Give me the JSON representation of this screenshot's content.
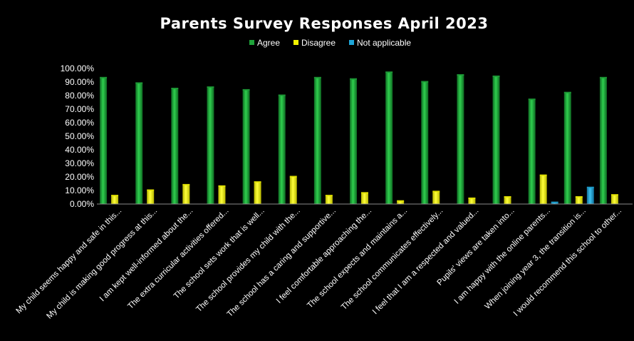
{
  "chart_data": {
    "type": "bar",
    "title": "Parents Survey Responses April 2023",
    "xlabel": "",
    "ylabel": "",
    "ylim": [
      0,
      100
    ],
    "y_ticks": [
      "0.00%",
      "10.00%",
      "20.00%",
      "30.00%",
      "40.00%",
      "50.00%",
      "60.00%",
      "70.00%",
      "80.00%",
      "90.00%",
      "100.00%"
    ],
    "grid": false,
    "legend_position": "top-center",
    "categories": [
      "My child seems happy and safe in this...",
      "My child is making good progress at this...",
      "I am kept well-informed about the...",
      "The extra curricular activities offered...",
      "The school sets work that is well...",
      "The school provides my child with the...",
      "The school has a caring and supportive...",
      "I feel comfortable approaching the...",
      "The school expects and maintains a...",
      "The school communicates effectively...",
      "I feel that I am a respected and valued...",
      "Pupils' views are taken into...",
      "I am happy with the online parents...",
      "When joining year 3, the transition is...",
      "I would recommend this school to other..."
    ],
    "series": [
      {
        "name": "Agree",
        "color": "#1fa33a",
        "values": [
          93,
          89,
          85,
          86,
          84,
          80,
          93,
          92,
          97,
          90,
          95,
          94,
          77,
          82,
          93
        ]
      },
      {
        "name": "Disagree",
        "color": "#f2f200",
        "values": [
          6,
          10,
          14,
          13,
          16,
          20,
          6,
          8,
          2,
          9,
          4,
          5,
          21,
          5,
          6.5
        ]
      },
      {
        "name": "Not applicable",
        "color": "#1ea6d8",
        "values": [
          0,
          0,
          0,
          0,
          0,
          0,
          0,
          0,
          0,
          0,
          0,
          0,
          1,
          12,
          0
        ]
      }
    ]
  }
}
